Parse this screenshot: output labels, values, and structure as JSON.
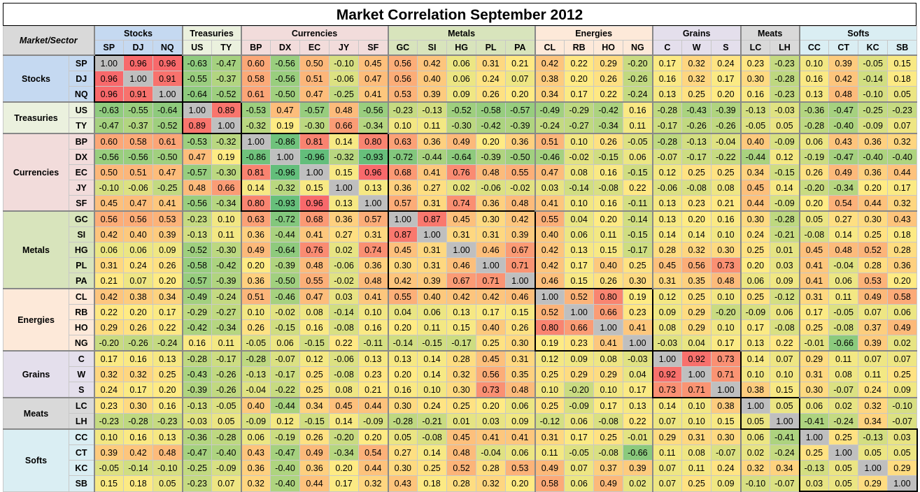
{
  "title": "Market Correlation September 2012",
  "corner_label": "Market/Sector",
  "groups": [
    {
      "name": "Stocks",
      "color": "#c5d9f1",
      "symbols": [
        "SP",
        "DJ",
        "NQ"
      ]
    },
    {
      "name": "Treasuries",
      "color": "#ebf1de",
      "symbols": [
        "US",
        "TY"
      ]
    },
    {
      "name": "Currencies",
      "color": "#f2dcdb",
      "symbols": [
        "BP",
        "DX",
        "EC",
        "JY",
        "SF"
      ]
    },
    {
      "name": "Metals",
      "color": "#d8e4bc",
      "symbols": [
        "GC",
        "SI",
        "HG",
        "PL",
        "PA"
      ]
    },
    {
      "name": "Energies",
      "color": "#fde9d9",
      "symbols": [
        "CL",
        "RB",
        "HO",
        "NG"
      ]
    },
    {
      "name": "Grains",
      "color": "#e4dfec",
      "symbols": [
        "C",
        "W",
        "S"
      ]
    },
    {
      "name": "Meats",
      "color": "#d9d9d9",
      "symbols": [
        "LC",
        "LH"
      ]
    },
    {
      "name": "Softs",
      "color": "#daeef3",
      "symbols": [
        "CC",
        "CT",
        "KC",
        "SB"
      ]
    }
  ],
  "chart_data": {
    "type": "heatmap",
    "title": "Market Correlation September 2012",
    "symbols": [
      "SP",
      "DJ",
      "NQ",
      "US",
      "TY",
      "BP",
      "DX",
      "EC",
      "JY",
      "SF",
      "GC",
      "SI",
      "HG",
      "PL",
      "PA",
      "CL",
      "RB",
      "HO",
      "NG",
      "C",
      "W",
      "S",
      "LC",
      "LH",
      "CC",
      "CT",
      "KC",
      "SB"
    ],
    "values": [
      [
        "1.00",
        "0.96",
        "0.96",
        "-0.63",
        "-0.47",
        "0.60",
        "-0.56",
        "0.50",
        "-0.10",
        "0.45",
        "0.56",
        "0.42",
        "0.06",
        "0.31",
        "0.21",
        "0.42",
        "0.22",
        "0.29",
        "-0.20",
        "0.17",
        "0.32",
        "0.24",
        "0.23",
        "-0.23",
        "0.10",
        "0.39",
        "-0.05",
        "0.15"
      ],
      [
        "0.96",
        "1.00",
        "0.91",
        "-0.55",
        "-0.37",
        "0.58",
        "-0.56",
        "0.51",
        "-0.06",
        "0.47",
        "0.56",
        "0.40",
        "0.06",
        "0.24",
        "0.07",
        "0.38",
        "0.20",
        "0.26",
        "-0.26",
        "0.16",
        "0.32",
        "0.17",
        "0.30",
        "-0.28",
        "0.16",
        "0.42",
        "-0.14",
        "0.18"
      ],
      [
        "0.96",
        "0.91",
        "1.00",
        "-0.64",
        "-0.52",
        "0.61",
        "-0.50",
        "0.47",
        "-0.25",
        "0.41",
        "0.53",
        "0.39",
        "0.09",
        "0.26",
        "0.20",
        "0.34",
        "0.17",
        "0.22",
        "-0.24",
        "0.13",
        "0.25",
        "0.20",
        "0.16",
        "-0.23",
        "0.13",
        "0.48",
        "-0.10",
        "0.05"
      ],
      [
        "-0.63",
        "-0.55",
        "-0.64",
        "1.00",
        "0.89",
        "-0.53",
        "0.47",
        "-0.57",
        "0.48",
        "-0.56",
        "-0.23",
        "-0.13",
        "-0.52",
        "-0.58",
        "-0.57",
        "-0.49",
        "-0.29",
        "-0.42",
        "0.16",
        "-0.28",
        "-0.43",
        "-0.39",
        "-0.13",
        "-0.03",
        "-0.36",
        "-0.47",
        "-0.25",
        "-0.23"
      ],
      [
        "-0.47",
        "-0.37",
        "-0.52",
        "0.89",
        "1.00",
        "-0.32",
        "0.19",
        "-0.30",
        "0.66",
        "-0.34",
        "0.10",
        "0.11",
        "-0.30",
        "-0.42",
        "-0.39",
        "-0.24",
        "-0.27",
        "-0.34",
        "0.11",
        "-0.17",
        "-0.26",
        "-0.26",
        "-0.05",
        "0.05",
        "-0.28",
        "-0.40",
        "-0.09",
        "0.07"
      ],
      [
        "0.60",
        "0.58",
        "0.61",
        "-0.53",
        "-0.32",
        "1.00",
        "-0.86",
        "0.81",
        "0.14",
        "0.80",
        "0.63",
        "0.36",
        "0.49",
        "0.20",
        "0.36",
        "0.51",
        "0.10",
        "0.26",
        "-0.05",
        "-0.28",
        "-0.13",
        "-0.04",
        "0.40",
        "-0.09",
        "0.06",
        "0.43",
        "0.36",
        "0.32"
      ],
      [
        "-0.56",
        "-0.56",
        "-0.50",
        "0.47",
        "0.19",
        "-0.86",
        "1.00",
        "-0.96",
        "-0.32",
        "-0.93",
        "-0.72",
        "-0.44",
        "-0.64",
        "-0.39",
        "-0.50",
        "-0.46",
        "-0.02",
        "-0.15",
        "0.06",
        "-0.07",
        "-0.17",
        "-0.22",
        "-0.44",
        "0.12",
        "-0.19",
        "-0.47",
        "-0.40",
        "-0.40"
      ],
      [
        "0.50",
        "0.51",
        "0.47",
        "-0.57",
        "-0.30",
        "0.81",
        "-0.96",
        "1.00",
        "0.15",
        "0.96",
        "0.68",
        "0.41",
        "0.76",
        "0.48",
        "0.55",
        "0.47",
        "0.08",
        "0.16",
        "-0.15",
        "0.12",
        "0.25",
        "0.25",
        "0.34",
        "-0.15",
        "0.26",
        "0.49",
        "0.36",
        "0.44"
      ],
      [
        "-0.10",
        "-0.06",
        "-0.25",
        "0.48",
        "0.66",
        "0.14",
        "-0.32",
        "0.15",
        "1.00",
        "0.13",
        "0.36",
        "0.27",
        "0.02",
        "-0.06",
        "-0.02",
        "0.03",
        "-0.14",
        "-0.08",
        "0.22",
        "-0.06",
        "-0.08",
        "0.08",
        "0.45",
        "0.14",
        "-0.20",
        "-0.34",
        "0.20",
        "0.17"
      ],
      [
        "0.45",
        "0.47",
        "0.41",
        "-0.56",
        "-0.34",
        "0.80",
        "-0.93",
        "0.96",
        "0.13",
        "1.00",
        "0.57",
        "0.31",
        "0.74",
        "0.36",
        "0.48",
        "0.41",
        "0.10",
        "0.16",
        "-0.11",
        "0.13",
        "0.23",
        "0.21",
        "0.44",
        "-0.09",
        "0.20",
        "0.54",
        "0.44",
        "0.32"
      ],
      [
        "0.56",
        "0.56",
        "0.53",
        "-0.23",
        "0.10",
        "0.63",
        "-0.72",
        "0.68",
        "0.36",
        "0.57",
        "1.00",
        "0.87",
        "0.45",
        "0.30",
        "0.42",
        "0.55",
        "0.04",
        "0.20",
        "-0.14",
        "0.13",
        "0.20",
        "0.16",
        "0.30",
        "-0.28",
        "0.05",
        "0.27",
        "0.30",
        "0.43"
      ],
      [
        "0.42",
        "0.40",
        "0.39",
        "-0.13",
        "0.11",
        "0.36",
        "-0.44",
        "0.41",
        "0.27",
        "0.31",
        "0.87",
        "1.00",
        "0.31",
        "0.31",
        "0.39",
        "0.40",
        "0.06",
        "0.11",
        "-0.15",
        "0.14",
        "0.14",
        "0.10",
        "0.24",
        "-0.21",
        "-0.08",
        "0.14",
        "0.25",
        "0.18"
      ],
      [
        "0.06",
        "0.06",
        "0.09",
        "-0.52",
        "-0.30",
        "0.49",
        "-0.64",
        "0.76",
        "0.02",
        "0.74",
        "0.45",
        "0.31",
        "1.00",
        "0.46",
        "0.67",
        "0.42",
        "0.13",
        "0.15",
        "-0.17",
        "0.28",
        "0.32",
        "0.30",
        "0.25",
        "0.01",
        "0.45",
        "0.48",
        "0.52",
        "0.28"
      ],
      [
        "0.31",
        "0.24",
        "0.26",
        "-0.58",
        "-0.42",
        "0.20",
        "-0.39",
        "0.48",
        "-0.06",
        "0.36",
        "0.30",
        "0.31",
        "0.46",
        "1.00",
        "0.71",
        "0.42",
        "0.17",
        "0.40",
        "0.25",
        "0.45",
        "0.56",
        "0.73",
        "0.20",
        "0.03",
        "0.41",
        "-0.04",
        "0.28",
        "0.36"
      ],
      [
        "0.21",
        "0.07",
        "0.20",
        "-0.57",
        "-0.39",
        "0.36",
        "-0.50",
        "0.55",
        "-0.02",
        "0.48",
        "0.42",
        "0.39",
        "0.67",
        "0.71",
        "1.00",
        "0.46",
        "0.15",
        "0.26",
        "0.30",
        "0.31",
        "0.35",
        "0.48",
        "0.06",
        "0.09",
        "0.41",
        "0.06",
        "0.53",
        "0.20"
      ],
      [
        "0.42",
        "0.38",
        "0.34",
        "-0.49",
        "-0.24",
        "0.51",
        "-0.46",
        "0.47",
        "0.03",
        "0.41",
        "0.55",
        "0.40",
        "0.42",
        "0.42",
        "0.46",
        "1.00",
        "0.52",
        "0.80",
        "0.19",
        "0.12",
        "0.25",
        "0.10",
        "0.25",
        "-0.12",
        "0.31",
        "0.11",
        "0.49",
        "0.58"
      ],
      [
        "0.22",
        "0.20",
        "0.17",
        "-0.29",
        "-0.27",
        "0.10",
        "-0.02",
        "0.08",
        "-0.14",
        "0.10",
        "0.04",
        "0.06",
        "0.13",
        "0.17",
        "0.15",
        "0.52",
        "1.00",
        "0.66",
        "0.23",
        "0.09",
        "0.29",
        "-0.20",
        "-0.09",
        "0.06",
        "0.17",
        "-0.05",
        "0.07",
        "0.06"
      ],
      [
        "0.29",
        "0.26",
        "0.22",
        "-0.42",
        "-0.34",
        "0.26",
        "-0.15",
        "0.16",
        "-0.08",
        "0.16",
        "0.20",
        "0.11",
        "0.15",
        "0.40",
        "0.26",
        "0.80",
        "0.66",
        "1.00",
        "0.41",
        "0.08",
        "0.29",
        "0.10",
        "0.17",
        "-0.08",
        "0.25",
        "-0.08",
        "0.37",
        "0.49"
      ],
      [
        "-0.20",
        "-0.26",
        "-0.24",
        "0.16",
        "0.11",
        "-0.05",
        "0.06",
        "-0.15",
        "0.22",
        "-0.11",
        "-0.14",
        "-0.15",
        "-0.17",
        "0.25",
        "0.30",
        "0.19",
        "0.23",
        "0.41",
        "1.00",
        "-0.03",
        "0.04",
        "0.17",
        "0.13",
        "0.22",
        "-0.01",
        "-0.66",
        "0.39",
        "0.02"
      ],
      [
        "0.17",
        "0.16",
        "0.13",
        "-0.28",
        "-0.17",
        "-0.28",
        "-0.07",
        "0.12",
        "-0.06",
        "0.13",
        "0.13",
        "0.14",
        "0.28",
        "0.45",
        "0.31",
        "0.12",
        "0.09",
        "0.08",
        "-0.03",
        "1.00",
        "0.92",
        "0.73",
        "0.14",
        "0.07",
        "0.29",
        "0.11",
        "0.07",
        "0.07"
      ],
      [
        "0.32",
        "0.32",
        "0.25",
        "-0.43",
        "-0.26",
        "-0.13",
        "-0.17",
        "0.25",
        "-0.08",
        "0.23",
        "0.20",
        "0.14",
        "0.32",
        "0.56",
        "0.35",
        "0.25",
        "0.29",
        "0.29",
        "0.04",
        "0.92",
        "1.00",
        "0.71",
        "0.10",
        "0.10",
        "0.31",
        "0.08",
        "0.11",
        "0.25"
      ],
      [
        "0.24",
        "0.17",
        "0.20",
        "-0.39",
        "-0.26",
        "-0.04",
        "-0.22",
        "0.25",
        "0.08",
        "0.21",
        "0.16",
        "0.10",
        "0.30",
        "0.73",
        "0.48",
        "0.10",
        "-0.20",
        "0.10",
        "0.17",
        "0.73",
        "0.71",
        "1.00",
        "0.38",
        "0.15",
        "0.30",
        "-0.07",
        "0.24",
        "0.09"
      ],
      [
        "0.23",
        "0.30",
        "0.16",
        "-0.13",
        "-0.05",
        "0.40",
        "-0.44",
        "0.34",
        "0.45",
        "0.44",
        "0.30",
        "0.24",
        "0.25",
        "0.20",
        "0.06",
        "0.25",
        "-0.09",
        "0.17",
        "0.13",
        "0.14",
        "0.10",
        "0.38",
        "1.00",
        "0.05",
        "0.06",
        "0.02",
        "0.32",
        "-0.10"
      ],
      [
        "-0.23",
        "-0.28",
        "-0.23",
        "-0.03",
        "0.05",
        "-0.09",
        "0.12",
        "-0.15",
        "0.14",
        "-0.09",
        "-0.28",
        "-0.21",
        "0.01",
        "0.03",
        "0.09",
        "-0.12",
        "0.06",
        "-0.08",
        "0.22",
        "0.07",
        "0.10",
        "0.15",
        "0.05",
        "1.00",
        "-0.41",
        "-0.24",
        "0.34",
        "-0.07"
      ],
      [
        "0.10",
        "0.16",
        "0.13",
        "-0.36",
        "-0.28",
        "0.06",
        "-0.19",
        "0.26",
        "-0.20",
        "0.20",
        "0.05",
        "-0.08",
        "0.45",
        "0.41",
        "0.41",
        "0.31",
        "0.17",
        "0.25",
        "-0.01",
        "0.29",
        "0.31",
        "0.30",
        "0.06",
        "-0.41",
        "1.00",
        "0.25",
        "-0.13",
        "0.03"
      ],
      [
        "0.39",
        "0.42",
        "0.48",
        "-0.47",
        "-0.40",
        "0.43",
        "-0.47",
        "0.49",
        "-0.34",
        "0.54",
        "0.27",
        "0.14",
        "0.48",
        "-0.04",
        "0.06",
        "0.11",
        "-0.05",
        "-0.08",
        "-0.66",
        "0.11",
        "0.08",
        "-0.07",
        "0.02",
        "-0.24",
        "0.25",
        "1.00",
        "0.05",
        "0.05"
      ],
      [
        "-0.05",
        "-0.14",
        "-0.10",
        "-0.25",
        "-0.09",
        "0.36",
        "-0.40",
        "0.36",
        "0.20",
        "0.44",
        "0.30",
        "0.25",
        "0.52",
        "0.28",
        "0.53",
        "0.49",
        "0.07",
        "0.37",
        "0.39",
        "0.07",
        "0.11",
        "0.24",
        "0.32",
        "0.34",
        "-0.13",
        "0.05",
        "1.00",
        "0.29"
      ],
      [
        "0.15",
        "0.18",
        "0.05",
        "-0.23",
        "0.07",
        "0.32",
        "-0.40",
        "0.44",
        "0.17",
        "0.32",
        "0.43",
        "0.18",
        "0.28",
        "0.32",
        "0.20",
        "0.58",
        "0.06",
        "0.49",
        "0.02",
        "0.07",
        "0.25",
        "0.09",
        "-0.10",
        "-0.07",
        "0.03",
        "0.05",
        "0.29",
        "1.00"
      ]
    ],
    "color_scale": {
      "low": "#63be7b",
      "mid": "#ffeb84",
      "high": "#f8696b",
      "diagonal": "#bfbfbf"
    }
  }
}
